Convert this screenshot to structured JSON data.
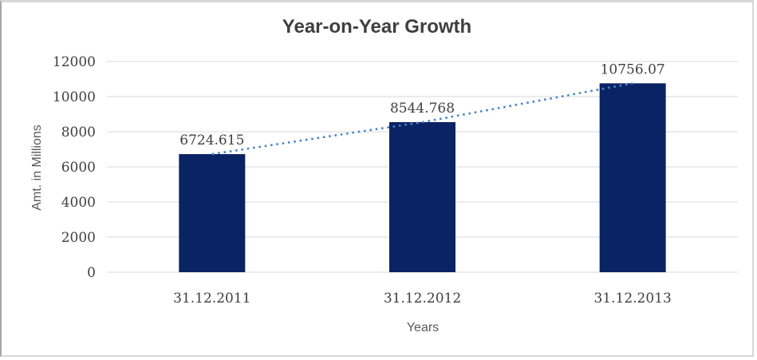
{
  "chart_data": {
    "type": "bar",
    "title": "Year-on-Year Growth",
    "xlabel": "Years",
    "ylabel": "Amt. in Millions",
    "categories": [
      "31.12.2011",
      "31.12.2012",
      "31.12.2013"
    ],
    "series": [
      {
        "name": "Amt. in Millions",
        "type": "bar",
        "values": [
          6724.615,
          8544.768,
          10756.07
        ]
      },
      {
        "name": "trendline",
        "type": "line",
        "style": "dotted",
        "values": [
          6724.615,
          8544.768,
          10756.07
        ]
      }
    ],
    "data_labels": [
      "6724.615",
      "8544.768",
      "10756.07"
    ],
    "yticks": [
      0,
      2000,
      4000,
      6000,
      8000,
      10000,
      12000
    ],
    "ylim": [
      0,
      12000
    ],
    "grid": "horizontal",
    "legend": "none",
    "colors": {
      "bar": "#0a2364",
      "trendline": "#4a86c8",
      "gridline": "#d9d9d9",
      "title_text": "#3f3f3f",
      "tick_text": "#404040",
      "axis_title_text": "#595959",
      "frame_border": "#d8d8d8"
    }
  }
}
